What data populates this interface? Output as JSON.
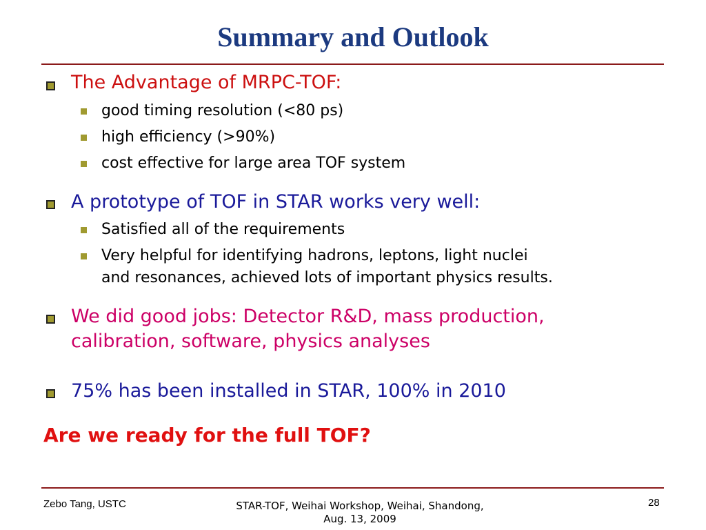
{
  "header": {
    "title": "Summary and Outlook"
  },
  "sections": [
    {
      "text": "The Advantage of MRPC-TOF:",
      "items": [
        "good timing resolution (<80 ps)",
        "high efficiency (>90%)",
        "cost effective for large area TOF system"
      ]
    },
    {
      "text": "A prototype of TOF in STAR works very well:",
      "items": [
        "Satisfied all of the requirements",
        {
          "lines": [
            "Very helpful for identifying hadrons, leptons, light nuclei",
            "and resonances, achieved lots of important physics results."
          ]
        }
      ]
    },
    {
      "lines": [
        "We did good jobs: Detector R&D, mass production,",
        "calibration, software, physics analyses"
      ]
    },
    {
      "text": "75% has been installed in STAR, 100% in 2010"
    }
  ],
  "conclusion": "Are we ready for the full TOF?",
  "footer": {
    "author": "Zebo Tang, USTC",
    "event": [
      "STAR-TOF, Weihai Workshop, Weihai, Shandong,",
      "Aug. 13, 2009"
    ],
    "page": "28"
  }
}
